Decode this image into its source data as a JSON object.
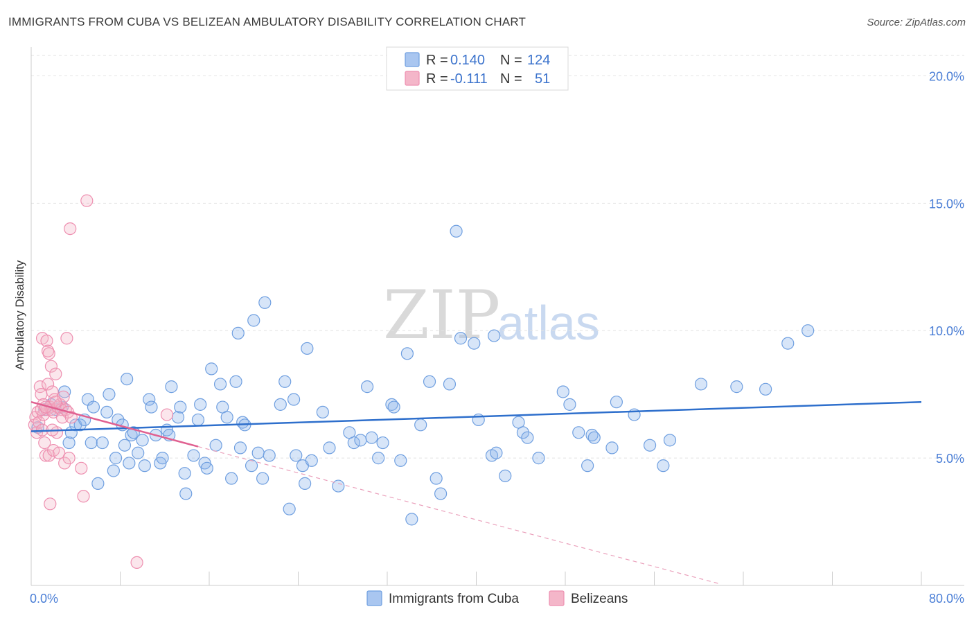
{
  "header": {
    "title": "IMMIGRANTS FROM CUBA VS BELIZEAN AMBULATORY DISABILITY CORRELATION CHART",
    "source": "Source: ZipAtlas.com"
  },
  "watermark": {
    "zip": "ZIP",
    "atlas": "atlas"
  },
  "legend": {
    "r_label": "R =",
    "n_label": "N =",
    "cuba": {
      "r": "0.140",
      "n": "124",
      "color": "#a9c6f0"
    },
    "belize": {
      "r": "-0.111",
      "n": "51",
      "color": "#f4b6c9"
    }
  },
  "bottom_legend": {
    "cuba": "Immigrants from Cuba",
    "belize": "Belizeans"
  },
  "chart_data": {
    "type": "scatter",
    "title": "IMMIGRANTS FROM CUBA VS BELIZEAN AMBULATORY DISABILITY CORRELATION CHART",
    "ylabel": "Ambulatory Disability",
    "xlabel": "",
    "xlim": [
      0,
      80
    ],
    "ylim": [
      0,
      20.8
    ],
    "x_tick_labels": [
      "0.0%",
      "80.0%"
    ],
    "y_ticks": [
      5,
      10,
      15,
      20
    ],
    "y_tick_labels": [
      "5.0%",
      "10.0%",
      "15.0%",
      "20.0%"
    ],
    "grid": true,
    "legend_position": "top-center",
    "series": [
      {
        "name": "Immigrants from Cuba",
        "color": "#6f9fe0",
        "fill": "rgba(140,180,235,0.35)",
        "trend": {
          "x": [
            0,
            80
          ],
          "y": [
            6.05,
            7.2
          ],
          "color": "#2e6fcc"
        },
        "points": [
          [
            0.6,
            6.2
          ],
          [
            1.2,
            6.9
          ],
          [
            1.8,
            7.1
          ],
          [
            2.2,
            6.9
          ],
          [
            2.8,
            7.0
          ],
          [
            3.0,
            7.6
          ],
          [
            3.4,
            5.6
          ],
          [
            3.6,
            6.0
          ],
          [
            4.0,
            6.3
          ],
          [
            4.4,
            6.3
          ],
          [
            4.8,
            6.5
          ],
          [
            5.1,
            7.3
          ],
          [
            5.4,
            5.6
          ],
          [
            5.6,
            7.0
          ],
          [
            6.0,
            4.0
          ],
          [
            6.4,
            5.6
          ],
          [
            6.8,
            6.8
          ],
          [
            7.0,
            7.5
          ],
          [
            7.4,
            4.5
          ],
          [
            7.6,
            5.0
          ],
          [
            7.8,
            6.5
          ],
          [
            8.2,
            6.3
          ],
          [
            8.4,
            5.5
          ],
          [
            8.6,
            8.1
          ],
          [
            8.8,
            4.8
          ],
          [
            9.0,
            5.9
          ],
          [
            9.2,
            6.0
          ],
          [
            9.6,
            5.2
          ],
          [
            10.0,
            5.7
          ],
          [
            10.2,
            4.7
          ],
          [
            10.6,
            7.3
          ],
          [
            10.8,
            7.0
          ],
          [
            11.2,
            5.9
          ],
          [
            11.6,
            4.8
          ],
          [
            11.8,
            5.0
          ],
          [
            12.2,
            6.1
          ],
          [
            12.4,
            5.9
          ],
          [
            12.6,
            7.8
          ],
          [
            13.2,
            6.6
          ],
          [
            13.4,
            7.0
          ],
          [
            13.8,
            4.4
          ],
          [
            13.9,
            3.6
          ],
          [
            14.6,
            5.1
          ],
          [
            15.0,
            6.5
          ],
          [
            15.2,
            7.1
          ],
          [
            15.6,
            4.8
          ],
          [
            15.8,
            4.6
          ],
          [
            16.2,
            8.5
          ],
          [
            16.6,
            5.5
          ],
          [
            17.0,
            7.9
          ],
          [
            17.2,
            7.0
          ],
          [
            17.6,
            6.6
          ],
          [
            18.0,
            4.2
          ],
          [
            18.4,
            8.0
          ],
          [
            18.6,
            9.9
          ],
          [
            18.8,
            5.4
          ],
          [
            19.0,
            6.4
          ],
          [
            19.2,
            6.3
          ],
          [
            19.8,
            4.7
          ],
          [
            20.0,
            10.4
          ],
          [
            20.4,
            5.2
          ],
          [
            20.8,
            4.2
          ],
          [
            21.0,
            11.1
          ],
          [
            21.4,
            5.1
          ],
          [
            22.4,
            7.1
          ],
          [
            22.8,
            8.0
          ],
          [
            23.2,
            3.0
          ],
          [
            23.6,
            7.3
          ],
          [
            23.8,
            5.1
          ],
          [
            24.4,
            4.7
          ],
          [
            24.6,
            4.0
          ],
          [
            24.8,
            9.3
          ],
          [
            25.2,
            4.9
          ],
          [
            26.2,
            6.8
          ],
          [
            26.8,
            5.4
          ],
          [
            27.6,
            3.9
          ],
          [
            28.6,
            6.0
          ],
          [
            29.0,
            5.6
          ],
          [
            29.6,
            5.7
          ],
          [
            30.2,
            7.8
          ],
          [
            30.6,
            5.8
          ],
          [
            31.2,
            5.0
          ],
          [
            31.6,
            5.6
          ],
          [
            32.4,
            7.1
          ],
          [
            32.6,
            7.0
          ],
          [
            33.2,
            4.9
          ],
          [
            33.8,
            9.1
          ],
          [
            34.2,
            2.6
          ],
          [
            35.0,
            6.3
          ],
          [
            35.8,
            8.0
          ],
          [
            36.4,
            4.2
          ],
          [
            36.8,
            3.6
          ],
          [
            37.6,
            7.9
          ],
          [
            38.2,
            13.9
          ],
          [
            38.6,
            9.7
          ],
          [
            39.8,
            9.5
          ],
          [
            40.2,
            6.5
          ],
          [
            41.4,
            5.1
          ],
          [
            41.6,
            9.8
          ],
          [
            41.8,
            5.2
          ],
          [
            42.6,
            4.3
          ],
          [
            43.8,
            6.4
          ],
          [
            44.2,
            6.0
          ],
          [
            44.6,
            5.8
          ],
          [
            45.6,
            5.0
          ],
          [
            47.8,
            7.6
          ],
          [
            48.4,
            7.1
          ],
          [
            49.2,
            6.0
          ],
          [
            50.0,
            4.7
          ],
          [
            50.4,
            5.9
          ],
          [
            50.6,
            5.8
          ],
          [
            52.2,
            5.4
          ],
          [
            52.6,
            7.2
          ],
          [
            54.2,
            6.7
          ],
          [
            55.6,
            5.5
          ],
          [
            56.8,
            4.7
          ],
          [
            57.4,
            5.7
          ],
          [
            60.2,
            7.9
          ],
          [
            63.4,
            7.8
          ],
          [
            66.0,
            7.7
          ],
          [
            68.0,
            9.5
          ],
          [
            69.8,
            10.0
          ]
        ]
      },
      {
        "name": "Belizeans",
        "color": "#ee8fb0",
        "fill": "rgba(244,182,201,0.35)",
        "trend": {
          "x": [
            0,
            15
          ],
          "y": [
            7.2,
            5.45
          ],
          "color": "#e06090"
        },
        "trend_ext": {
          "x": [
            15,
            62
          ],
          "y": [
            5.45,
            0.05
          ],
          "color": "#eaa0bb"
        },
        "points": [
          [
            0.3,
            6.3
          ],
          [
            0.4,
            6.6
          ],
          [
            0.5,
            6.0
          ],
          [
            0.6,
            6.8
          ],
          [
            0.7,
            6.4
          ],
          [
            0.8,
            7.8
          ],
          [
            0.9,
            7.5
          ],
          [
            1.0,
            6.1
          ],
          [
            1.1,
            7.1
          ],
          [
            1.1,
            6.7
          ],
          [
            1.2,
            5.6
          ],
          [
            1.3,
            5.1
          ],
          [
            1.4,
            6.9
          ],
          [
            1.5,
            7.9
          ],
          [
            1.6,
            5.1
          ],
          [
            1.7,
            7.0
          ],
          [
            1.7,
            3.2
          ],
          [
            1.8,
            6.9
          ],
          [
            1.8,
            8.6
          ],
          [
            1.9,
            7.6
          ],
          [
            2.0,
            6.8
          ],
          [
            2.0,
            5.3
          ],
          [
            2.1,
            7.3
          ],
          [
            2.2,
            8.3
          ],
          [
            2.3,
            6.0
          ],
          [
            2.4,
            7.0
          ],
          [
            2.5,
            5.2
          ],
          [
            2.6,
            7.1
          ],
          [
            2.7,
            6.9
          ],
          [
            2.8,
            6.6
          ],
          [
            2.9,
            7.4
          ],
          [
            3.0,
            4.8
          ],
          [
            3.1,
            6.9
          ],
          [
            3.2,
            9.7
          ],
          [
            3.3,
            6.8
          ],
          [
            3.4,
            5.0
          ],
          [
            3.6,
            6.6
          ],
          [
            4.5,
            4.6
          ],
          [
            4.7,
            3.5
          ],
          [
            5.0,
            15.1
          ],
          [
            3.5,
            14.0
          ],
          [
            1.0,
            9.7
          ],
          [
            1.4,
            9.6
          ],
          [
            1.5,
            9.2
          ],
          [
            1.6,
            9.1
          ],
          [
            12.2,
            6.7
          ],
          [
            9.5,
            0.9
          ],
          [
            2.2,
            7.2
          ],
          [
            0.9,
            6.9
          ],
          [
            1.3,
            7.0
          ],
          [
            1.9,
            6.1
          ]
        ]
      }
    ]
  }
}
